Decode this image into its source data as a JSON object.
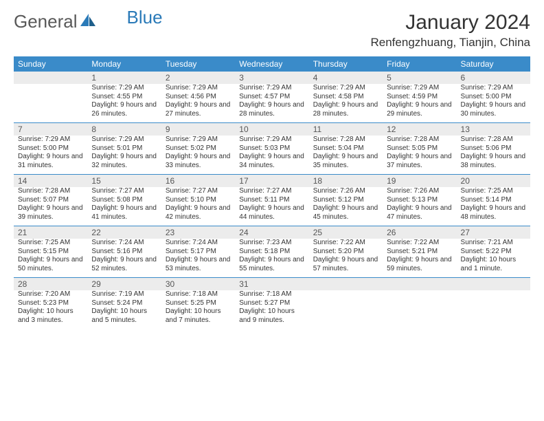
{
  "logo": {
    "text1": "General",
    "text2": "Blue"
  },
  "title": "January 2024",
  "location": "Renfengzhuang, Tianjin, China",
  "colors": {
    "header_bg": "#3a8bc9",
    "header_text": "#ffffff",
    "daynum_bg": "#ececec",
    "row_divider": "#3a8bc9",
    "body_text": "#333333",
    "logo_gray": "#595959",
    "logo_blue": "#2a7ab8",
    "page_bg": "#ffffff"
  },
  "typography": {
    "title_fontsize": 30,
    "location_fontsize": 17,
    "dow_fontsize": 12,
    "daynum_fontsize": 12,
    "cell_fontsize": 10
  },
  "days_of_week": [
    "Sunday",
    "Monday",
    "Tuesday",
    "Wednesday",
    "Thursday",
    "Friday",
    "Saturday"
  ],
  "weeks": [
    [
      null,
      {
        "n": "1",
        "sunrise": "Sunrise: 7:29 AM",
        "sunset": "Sunset: 4:55 PM",
        "daylight": "Daylight: 9 hours and 26 minutes."
      },
      {
        "n": "2",
        "sunrise": "Sunrise: 7:29 AM",
        "sunset": "Sunset: 4:56 PM",
        "daylight": "Daylight: 9 hours and 27 minutes."
      },
      {
        "n": "3",
        "sunrise": "Sunrise: 7:29 AM",
        "sunset": "Sunset: 4:57 PM",
        "daylight": "Daylight: 9 hours and 28 minutes."
      },
      {
        "n": "4",
        "sunrise": "Sunrise: 7:29 AM",
        "sunset": "Sunset: 4:58 PM",
        "daylight": "Daylight: 9 hours and 28 minutes."
      },
      {
        "n": "5",
        "sunrise": "Sunrise: 7:29 AM",
        "sunset": "Sunset: 4:59 PM",
        "daylight": "Daylight: 9 hours and 29 minutes."
      },
      {
        "n": "6",
        "sunrise": "Sunrise: 7:29 AM",
        "sunset": "Sunset: 5:00 PM",
        "daylight": "Daylight: 9 hours and 30 minutes."
      }
    ],
    [
      {
        "n": "7",
        "sunrise": "Sunrise: 7:29 AM",
        "sunset": "Sunset: 5:00 PM",
        "daylight": "Daylight: 9 hours and 31 minutes."
      },
      {
        "n": "8",
        "sunrise": "Sunrise: 7:29 AM",
        "sunset": "Sunset: 5:01 PM",
        "daylight": "Daylight: 9 hours and 32 minutes."
      },
      {
        "n": "9",
        "sunrise": "Sunrise: 7:29 AM",
        "sunset": "Sunset: 5:02 PM",
        "daylight": "Daylight: 9 hours and 33 minutes."
      },
      {
        "n": "10",
        "sunrise": "Sunrise: 7:29 AM",
        "sunset": "Sunset: 5:03 PM",
        "daylight": "Daylight: 9 hours and 34 minutes."
      },
      {
        "n": "11",
        "sunrise": "Sunrise: 7:28 AM",
        "sunset": "Sunset: 5:04 PM",
        "daylight": "Daylight: 9 hours and 35 minutes."
      },
      {
        "n": "12",
        "sunrise": "Sunrise: 7:28 AM",
        "sunset": "Sunset: 5:05 PM",
        "daylight": "Daylight: 9 hours and 37 minutes."
      },
      {
        "n": "13",
        "sunrise": "Sunrise: 7:28 AM",
        "sunset": "Sunset: 5:06 PM",
        "daylight": "Daylight: 9 hours and 38 minutes."
      }
    ],
    [
      {
        "n": "14",
        "sunrise": "Sunrise: 7:28 AM",
        "sunset": "Sunset: 5:07 PM",
        "daylight": "Daylight: 9 hours and 39 minutes."
      },
      {
        "n": "15",
        "sunrise": "Sunrise: 7:27 AM",
        "sunset": "Sunset: 5:08 PM",
        "daylight": "Daylight: 9 hours and 41 minutes."
      },
      {
        "n": "16",
        "sunrise": "Sunrise: 7:27 AM",
        "sunset": "Sunset: 5:10 PM",
        "daylight": "Daylight: 9 hours and 42 minutes."
      },
      {
        "n": "17",
        "sunrise": "Sunrise: 7:27 AM",
        "sunset": "Sunset: 5:11 PM",
        "daylight": "Daylight: 9 hours and 44 minutes."
      },
      {
        "n": "18",
        "sunrise": "Sunrise: 7:26 AM",
        "sunset": "Sunset: 5:12 PM",
        "daylight": "Daylight: 9 hours and 45 minutes."
      },
      {
        "n": "19",
        "sunrise": "Sunrise: 7:26 AM",
        "sunset": "Sunset: 5:13 PM",
        "daylight": "Daylight: 9 hours and 47 minutes."
      },
      {
        "n": "20",
        "sunrise": "Sunrise: 7:25 AM",
        "sunset": "Sunset: 5:14 PM",
        "daylight": "Daylight: 9 hours and 48 minutes."
      }
    ],
    [
      {
        "n": "21",
        "sunrise": "Sunrise: 7:25 AM",
        "sunset": "Sunset: 5:15 PM",
        "daylight": "Daylight: 9 hours and 50 minutes."
      },
      {
        "n": "22",
        "sunrise": "Sunrise: 7:24 AM",
        "sunset": "Sunset: 5:16 PM",
        "daylight": "Daylight: 9 hours and 52 minutes."
      },
      {
        "n": "23",
        "sunrise": "Sunrise: 7:24 AM",
        "sunset": "Sunset: 5:17 PM",
        "daylight": "Daylight: 9 hours and 53 minutes."
      },
      {
        "n": "24",
        "sunrise": "Sunrise: 7:23 AM",
        "sunset": "Sunset: 5:18 PM",
        "daylight": "Daylight: 9 hours and 55 minutes."
      },
      {
        "n": "25",
        "sunrise": "Sunrise: 7:22 AM",
        "sunset": "Sunset: 5:20 PM",
        "daylight": "Daylight: 9 hours and 57 minutes."
      },
      {
        "n": "26",
        "sunrise": "Sunrise: 7:22 AM",
        "sunset": "Sunset: 5:21 PM",
        "daylight": "Daylight: 9 hours and 59 minutes."
      },
      {
        "n": "27",
        "sunrise": "Sunrise: 7:21 AM",
        "sunset": "Sunset: 5:22 PM",
        "daylight": "Daylight: 10 hours and 1 minute."
      }
    ],
    [
      {
        "n": "28",
        "sunrise": "Sunrise: 7:20 AM",
        "sunset": "Sunset: 5:23 PM",
        "daylight": "Daylight: 10 hours and 3 minutes."
      },
      {
        "n": "29",
        "sunrise": "Sunrise: 7:19 AM",
        "sunset": "Sunset: 5:24 PM",
        "daylight": "Daylight: 10 hours and 5 minutes."
      },
      {
        "n": "30",
        "sunrise": "Sunrise: 7:18 AM",
        "sunset": "Sunset: 5:25 PM",
        "daylight": "Daylight: 10 hours and 7 minutes."
      },
      {
        "n": "31",
        "sunrise": "Sunrise: 7:18 AM",
        "sunset": "Sunset: 5:27 PM",
        "daylight": "Daylight: 10 hours and 9 minutes."
      },
      null,
      null,
      null
    ]
  ]
}
